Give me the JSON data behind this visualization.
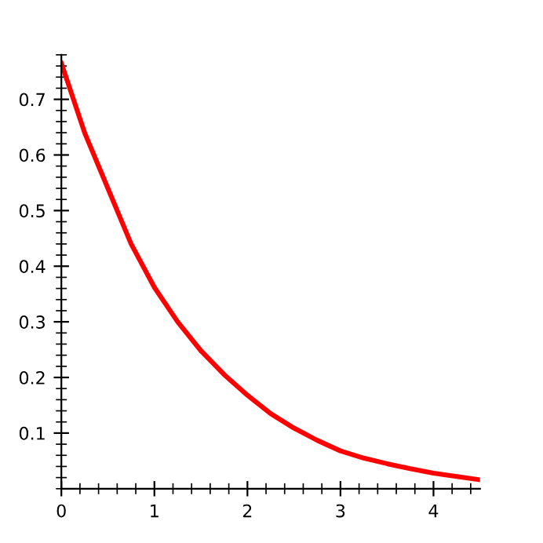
{
  "chart_data": {
    "type": "line",
    "x": [
      0,
      0.25,
      0.5,
      0.75,
      1,
      1.25,
      1.5,
      1.75,
      2,
      2.25,
      2.5,
      2.75,
      3,
      3.25,
      3.5,
      3.75,
      4,
      4.25,
      4.5
    ],
    "series": [
      {
        "color": "#ff0000",
        "values": [
          0.765,
          0.64,
          0.54,
          0.44,
          0.362,
          0.3,
          0.248,
          0.205,
          0.168,
          0.135,
          0.109,
          0.087,
          0.068,
          0.055,
          0.045,
          0.036,
          0.028,
          0.022,
          0.016
        ]
      }
    ],
    "xlim": [
      0,
      4.5
    ],
    "ylim": [
      0,
      0.78
    ],
    "xticks": [
      0,
      1,
      2,
      3,
      4
    ],
    "yticks": [
      0.1,
      0.2,
      0.3,
      0.4,
      0.5,
      0.6,
      0.7
    ],
    "grid": false,
    "marker": "none",
    "line_style": "solid"
  }
}
